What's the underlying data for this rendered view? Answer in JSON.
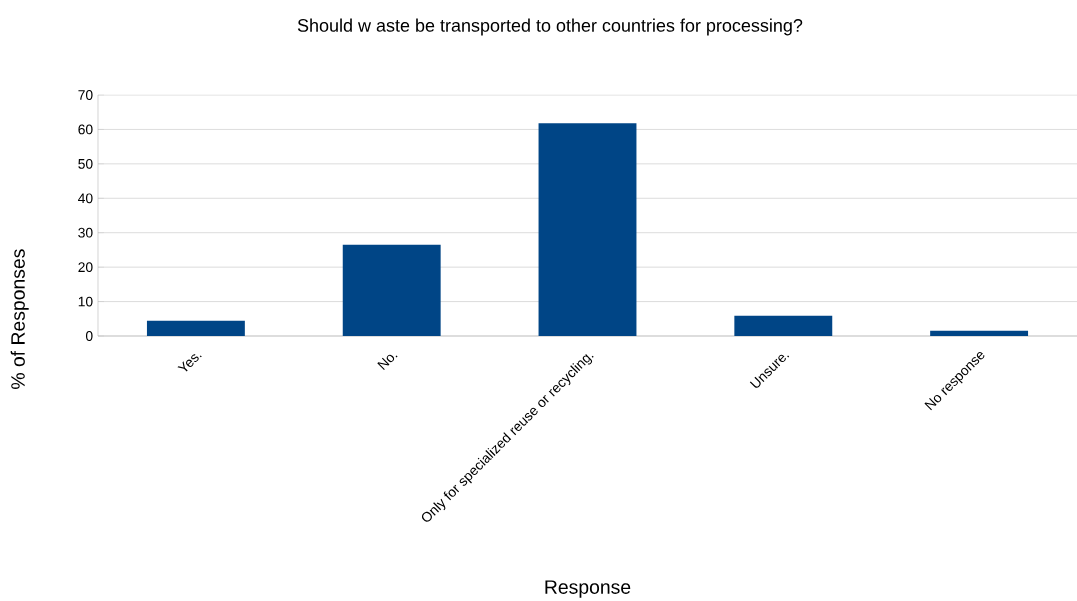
{
  "chart_data": {
    "type": "bar",
    "title": "Should w aste be transported to other countries for processing?",
    "xlabel": "Response",
    "ylabel": "% of Responses",
    "categories": [
      "Yes.",
      "No.",
      "Only for specialized reuse or recycling.",
      "Unsure.",
      "No response"
    ],
    "values": [
      4.4,
      26.5,
      61.8,
      5.9,
      1.5
    ],
    "color": "#004586",
    "ylim": [
      0,
      70
    ],
    "yticks": [
      0,
      10,
      20,
      30,
      40,
      50,
      60,
      70
    ],
    "grid": "y"
  }
}
